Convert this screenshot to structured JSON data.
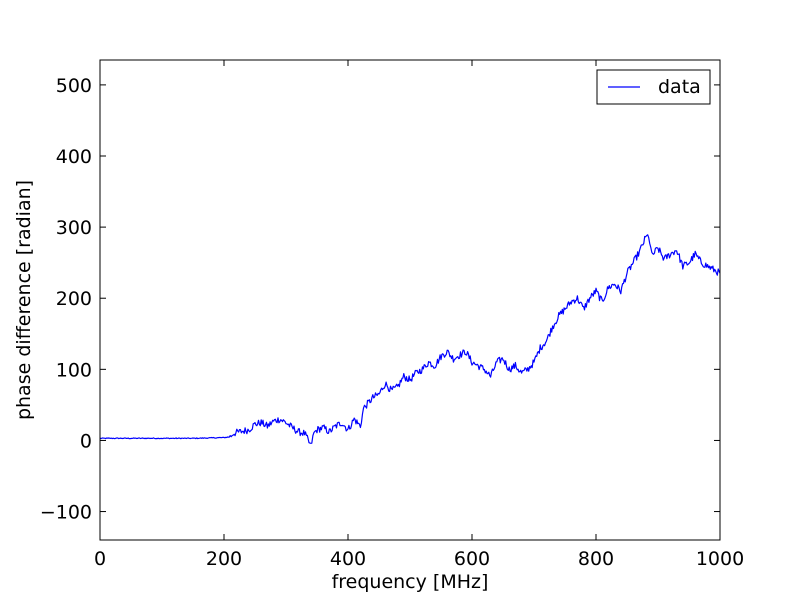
{
  "chart_data": {
    "type": "line",
    "xlabel": "frequency [MHz]",
    "ylabel": "phase difference [radian]",
    "xlim": [
      0,
      1000
    ],
    "ylim": [
      -140,
      535
    ],
    "xticks": [
      0,
      200,
      400,
      600,
      800,
      1000
    ],
    "yticks": [
      -100,
      0,
      100,
      200,
      300,
      400,
      500
    ],
    "xtick_labels": [
      "0",
      "200",
      "400",
      "600",
      "800",
      "1000"
    ],
    "ytick_labels": [
      "−100",
      "0",
      "100",
      "200",
      "300",
      "400",
      "500"
    ],
    "grid": false,
    "legend": {
      "placement": "top-right",
      "entries": [
        "data"
      ]
    },
    "series": [
      {
        "name": "data",
        "color": "#0000ff",
        "x": [
          0,
          50,
          100,
          150,
          200,
          210,
          215,
          225,
          240,
          250,
          260,
          270,
          280,
          290,
          300,
          310,
          320,
          330,
          340,
          345,
          350,
          360,
          370,
          380,
          390,
          400,
          410,
          420,
          425,
          430,
          440,
          450,
          460,
          470,
          480,
          490,
          500,
          510,
          520,
          530,
          540,
          550,
          560,
          570,
          580,
          590,
          600,
          610,
          620,
          630,
          640,
          650,
          660,
          670,
          680,
          690,
          700,
          710,
          720,
          730,
          740,
          750,
          760,
          770,
          780,
          790,
          800,
          810,
          820,
          830,
          840,
          850,
          860,
          870,
          880,
          885,
          890,
          900,
          910,
          920,
          930,
          940,
          950,
          960,
          970,
          980,
          990,
          1000
        ],
        "y": [
          3,
          3,
          3,
          3,
          4,
          5,
          10,
          12,
          15,
          23,
          25,
          20,
          27,
          30,
          25,
          18,
          12,
          10,
          -8,
          10,
          15,
          18,
          12,
          20,
          25,
          15,
          30,
          20,
          45,
          50,
          60,
          65,
          80,
          70,
          75,
          90,
          85,
          95,
          100,
          110,
          105,
          118,
          125,
          115,
          120,
          125,
          110,
          105,
          100,
          90,
          110,
          115,
          100,
          105,
          95,
          100,
          110,
          130,
          140,
          160,
          175,
          185,
          195,
          200,
          185,
          200,
          210,
          195,
          215,
          220,
          210,
          235,
          250,
          265,
          285,
          288,
          260,
          270,
          255,
          262,
          268,
          245,
          250,
          262,
          250,
          245,
          240,
          235
        ]
      }
    ]
  }
}
